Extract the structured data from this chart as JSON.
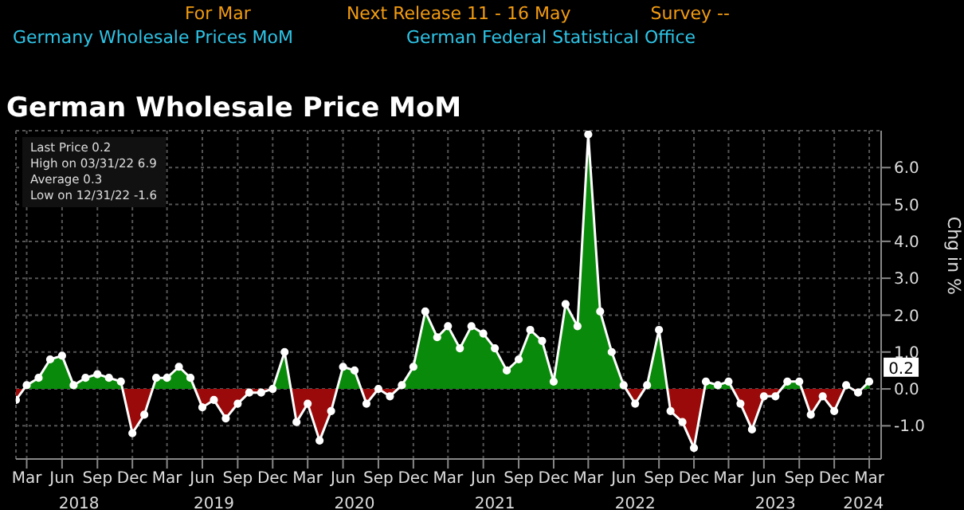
{
  "chart_data": {
    "type": "area",
    "title": "German Wholesale Price MoM",
    "subtitle": "Germany Wholesale Prices MoM",
    "ylabel": "Chg in %",
    "annotations": [
      "For Mar",
      "Next Release 11 - 16 May",
      "Survey --",
      "German Federal Statistical Office",
      "Last Price 0.2",
      "High on 03/31/22 6.9",
      "Average 0.3",
      "Low on 12/31/22 -1.6"
    ],
    "x": [
      "2018-02",
      "2018-03",
      "2018-04",
      "2018-05",
      "2018-06",
      "2018-07",
      "2018-08",
      "2018-09",
      "2018-10",
      "2018-11",
      "2018-12",
      "2019-01",
      "2019-02",
      "2019-03",
      "2019-04",
      "2019-05",
      "2019-06",
      "2019-07",
      "2019-08",
      "2019-09",
      "2019-10",
      "2019-11",
      "2019-12",
      "2020-01",
      "2020-02",
      "2020-03",
      "2020-04",
      "2020-05",
      "2020-06",
      "2020-07",
      "2020-08",
      "2020-09",
      "2020-10",
      "2020-11",
      "2020-12",
      "2021-01",
      "2021-02",
      "2021-03",
      "2021-04",
      "2021-05",
      "2021-06",
      "2021-07",
      "2021-08",
      "2021-09",
      "2021-10",
      "2021-11",
      "2021-12",
      "2022-01",
      "2022-02",
      "2022-03",
      "2022-04",
      "2022-05",
      "2022-06",
      "2022-07",
      "2022-08",
      "2022-09",
      "2022-10",
      "2022-11",
      "2022-12",
      "2023-01",
      "2023-02",
      "2023-03",
      "2023-04",
      "2023-05",
      "2023-06",
      "2023-07",
      "2023-08",
      "2023-09",
      "2023-10",
      "2023-11",
      "2023-12",
      "2024-01",
      "2024-02",
      "2024-03"
    ],
    "series": [
      {
        "color": "#ffffff",
        "values": [
          -0.3,
          0.1,
          0.3,
          0.8,
          0.9,
          0.1,
          0.3,
          0.4,
          0.3,
          0.2,
          -1.2,
          -0.7,
          0.3,
          0.3,
          0.6,
          0.3,
          -0.5,
          -0.3,
          -0.8,
          -0.4,
          -0.1,
          -0.1,
          0.0,
          1.0,
          -0.9,
          -0.4,
          -1.4,
          -0.6,
          0.6,
          0.5,
          -0.4,
          0.0,
          -0.2,
          0.1,
          0.6,
          2.1,
          1.4,
          1.7,
          1.1,
          1.7,
          1.5,
          1.1,
          0.5,
          0.8,
          1.6,
          1.3,
          0.2,
          2.3,
          1.7,
          6.9,
          2.1,
          1.0,
          0.1,
          -0.4,
          0.1,
          1.6,
          -0.6,
          -0.9,
          -1.6,
          0.2,
          0.1,
          0.2,
          -0.4,
          -1.1,
          -0.2,
          -0.2,
          0.2,
          0.2,
          -0.7,
          -0.2,
          -0.6,
          0.1,
          -0.1,
          0.2
        ],
        "value_labels": [
          null,
          null,
          null,
          null,
          null,
          null,
          null,
          null,
          null,
          null,
          null,
          null,
          null,
          null,
          null,
          null,
          null,
          null,
          null,
          null,
          null,
          null,
          null,
          null,
          null,
          null,
          null,
          null,
          null,
          null,
          null,
          null,
          null,
          null,
          null,
          null,
          null,
          null,
          null,
          null,
          null,
          null,
          null,
          null,
          null,
          null,
          null,
          null,
          null,
          null,
          null,
          null,
          null,
          null,
          null,
          null,
          null,
          null,
          null,
          null,
          null,
          null,
          null,
          null,
          null,
          null,
          null,
          null,
          null,
          null,
          null,
          null,
          null,
          "0.2"
        ]
      }
    ],
    "x2lim": [
      "2018-02",
      "2024-04"
    ],
    "xlim": [
      "2018-02",
      "2024-04"
    ],
    "xticks": [
      {
        "value": "2018-03",
        "label": "Mar"
      },
      {
        "value": "2018-06",
        "label": "Jun"
      },
      {
        "value": "2018-09",
        "label": "Sep"
      },
      {
        "value": "2018-12",
        "label": "Dec"
      },
      {
        "value": "2019-03",
        "label": "Mar"
      },
      {
        "value": "2019-06",
        "label": "Jun"
      },
      {
        "value": "2019-09",
        "label": "Sep"
      },
      {
        "value": "2019-12",
        "label": "Dec"
      },
      {
        "value": "2020-03",
        "label": "Mar"
      },
      {
        "value": "2020-06",
        "label": "Jun"
      },
      {
        "value": "2020-09",
        "label": "Sep"
      },
      {
        "value": "2020-12",
        "label": "Dec"
      },
      {
        "value": "2021-03",
        "label": "Mar"
      },
      {
        "value": "2021-06",
        "label": "Jun"
      },
      {
        "value": "2021-09",
        "label": "Sep"
      },
      {
        "value": "2021-12",
        "label": "Dec"
      },
      {
        "value": "2022-03",
        "label": "Mar"
      },
      {
        "value": "2022-06",
        "label": "Jun"
      },
      {
        "value": "2022-09",
        "label": "Sep"
      },
      {
        "value": "2022-12",
        "label": "Dec"
      },
      {
        "value": "2023-03",
        "label": "Mar"
      },
      {
        "value": "2023-06",
        "label": "Jun"
      },
      {
        "value": "2023-09",
        "label": "Sep"
      },
      {
        "value": "2023-12",
        "label": "Dec"
      },
      {
        "value": "2024-03",
        "label": "Mar"
      }
    ],
    "x2ticks": [
      {
        "value": "2018-07-15",
        "label": "2018"
      },
      {
        "value": "2019-07-01",
        "label": "2019"
      },
      {
        "value": "2020-07-01",
        "label": "2020"
      },
      {
        "value": "2021-07-01",
        "label": "2021"
      },
      {
        "value": "2022-07-01",
        "label": "2022"
      },
      {
        "value": "2023-07-01",
        "label": "2023"
      },
      {
        "value": "2024-02-15",
        "label": "2024"
      }
    ],
    "ylim": [
      -1.9,
      7.0
    ],
    "yticks": [
      {
        "value": -1,
        "label": "-1.0"
      },
      {
        "value": 0,
        "label": "0.0"
      },
      {
        "value": 1,
        "label": "1.0"
      },
      {
        "value": 2,
        "label": "2.0"
      },
      {
        "value": 3,
        "label": "3.0"
      },
      {
        "value": 4,
        "label": "4.0"
      },
      {
        "value": 5,
        "label": "5.0"
      },
      {
        "value": 6,
        "label": "6.0"
      }
    ],
    "grid": true,
    "marker": "circle",
    "line_style": "solid"
  }
}
